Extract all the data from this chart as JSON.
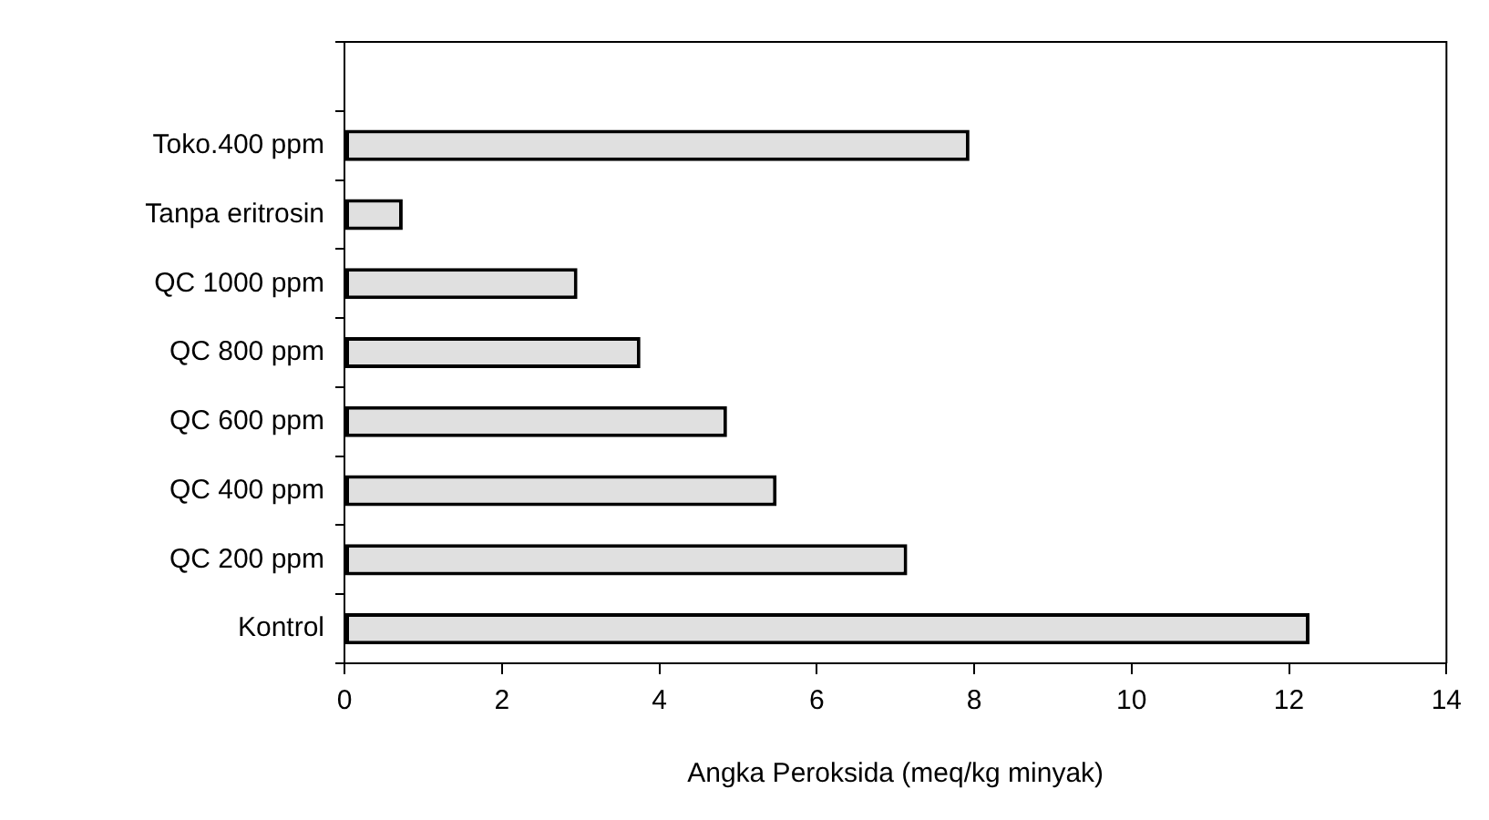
{
  "chart_data": {
    "type": "bar",
    "orientation": "horizontal",
    "xlabel": "Angka Peroksida (meq/kg minyak)",
    "categories": [
      null,
      "Toko.400 ppm",
      "Tanpa eritrosin",
      "QC 1000 ppm",
      "QC 800 ppm",
      "QC 600 ppm",
      "QC 400 ppm",
      "QC 200 ppm",
      "Kontrol"
    ],
    "values": [
      null,
      7.94,
      0.74,
      2.96,
      3.76,
      4.86,
      5.49,
      7.15,
      12.26
    ],
    "color": "#e0e0e0",
    "xlim": [
      0,
      14
    ],
    "xticks": [
      0,
      2,
      4,
      6,
      8,
      10,
      12,
      14
    ],
    "grid": false,
    "legend": false
  }
}
